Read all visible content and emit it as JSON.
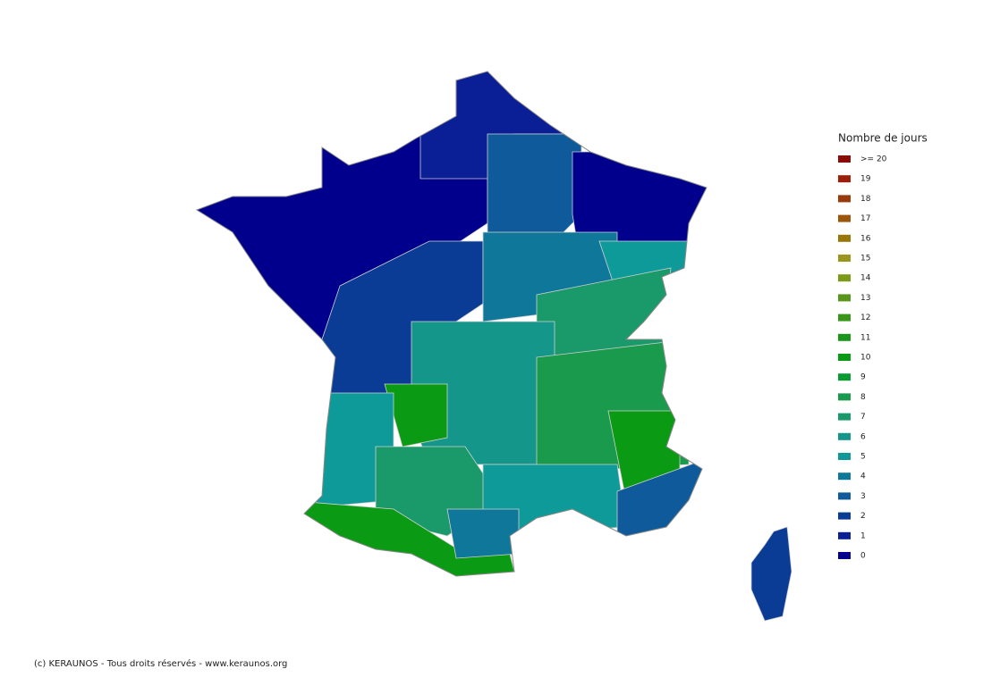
{
  "legend": {
    "title": "Nombre de jours",
    "items": [
      {
        "value": 20,
        "label": ">= 20"
      },
      19,
      18,
      17,
      16,
      15,
      14,
      13,
      12,
      11,
      10,
      9,
      8,
      7,
      6,
      5,
      4,
      3,
      2,
      1,
      0
    ],
    "colors": [
      "#8b0a0a",
      "#9a1e0a",
      "#9a3a0a",
      "#9a560a",
      "#9a760a",
      "#9a961a",
      "#7a9a1a",
      "#5a961a",
      "#3a961a",
      "#1a961a",
      "#0a9a14",
      "#0a9a32",
      "#1a9a4c",
      "#1a9a6a",
      "#14968a",
      "#0f9a9a",
      "#0f789a",
      "#0f5a9a",
      "#0a3c96",
      "#0a1e96",
      "#00008c"
    ]
  },
  "regions": [
    {
      "value": 0
    },
    {
      "value": 1
    },
    {
      "value": 3
    },
    {
      "value": 0
    },
    {
      "value": 2
    },
    {
      "value": 4
    },
    {
      "value": 5
    },
    {
      "value": 7
    },
    {
      "value": 6
    },
    {
      "value": 10
    },
    {
      "value": 5
    },
    {
      "value": 7
    },
    {
      "value": 10
    },
    {
      "value": 8
    },
    {
      "value": 10
    },
    {
      "value": 5
    },
    {
      "value": 3
    },
    {
      "value": 4
    },
    {
      "value": 2
    }
  ],
  "footer": "(c) KERAUNOS - Tous droits réservés - www.keraunos.org"
}
